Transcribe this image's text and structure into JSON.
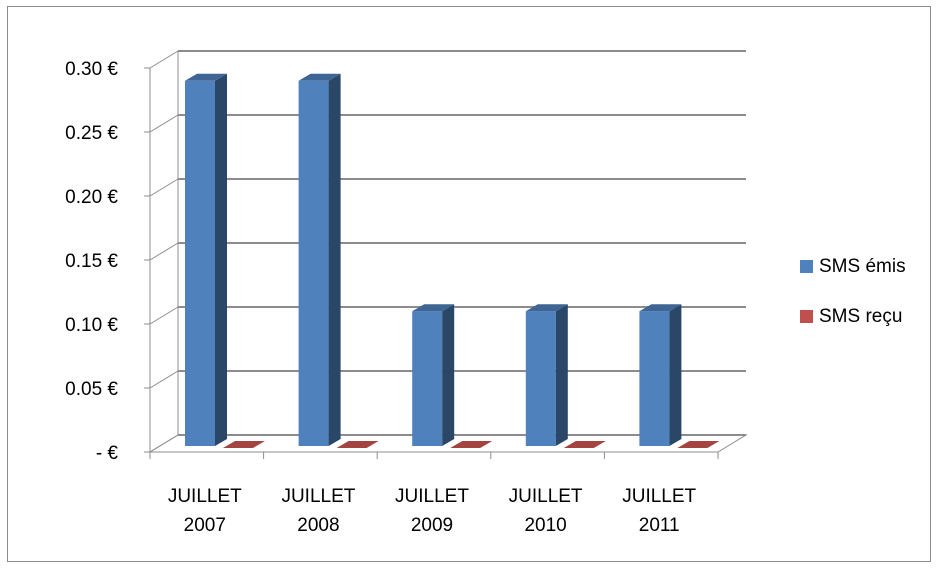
{
  "chart_data": {
    "type": "bar",
    "categories": [
      [
        "JUILLET",
        "2007"
      ],
      [
        "JUILLET",
        "2008"
      ],
      [
        "JUILLET",
        "2009"
      ],
      [
        "JUILLET",
        "2010"
      ],
      [
        "JUILLET",
        "2011"
      ]
    ],
    "series": [
      {
        "name": "SMS émis",
        "values": [
          0.29,
          0.29,
          0.11,
          0.11,
          0.11
        ],
        "color": "#4f81bd"
      },
      {
        "name": "SMS reçu",
        "values": [
          0.0,
          0.0,
          0.0,
          0.0,
          0.0
        ],
        "color": "#c0504d"
      }
    ],
    "y_ticks": [
      "-  €",
      "0.05 €",
      "0.10 €",
      "0.15 €",
      "0.20 €",
      "0.25 €",
      "0.30 €"
    ],
    "ylim": [
      0,
      0.3
    ],
    "grid": true,
    "legend": "right",
    "style": "3d-column"
  }
}
